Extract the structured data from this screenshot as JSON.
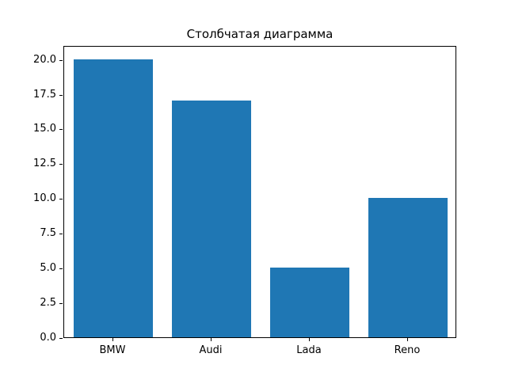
{
  "chart_data": {
    "type": "bar",
    "title": "Столбчатая диаграмма",
    "categories": [
      "BMW",
      "Audi",
      "Lada",
      "Reno"
    ],
    "values": [
      20,
      17,
      5,
      10
    ],
    "bar_color": "#1f77b4",
    "xlabel": "",
    "ylabel": "",
    "ylim": [
      0,
      21
    ],
    "yticks": [
      0.0,
      2.5,
      5.0,
      7.5,
      10.0,
      12.5,
      15.0,
      17.5,
      20.0
    ],
    "grid": false,
    "legend": "none",
    "background_color": "#ffffff",
    "axis_color": "#000000"
  }
}
